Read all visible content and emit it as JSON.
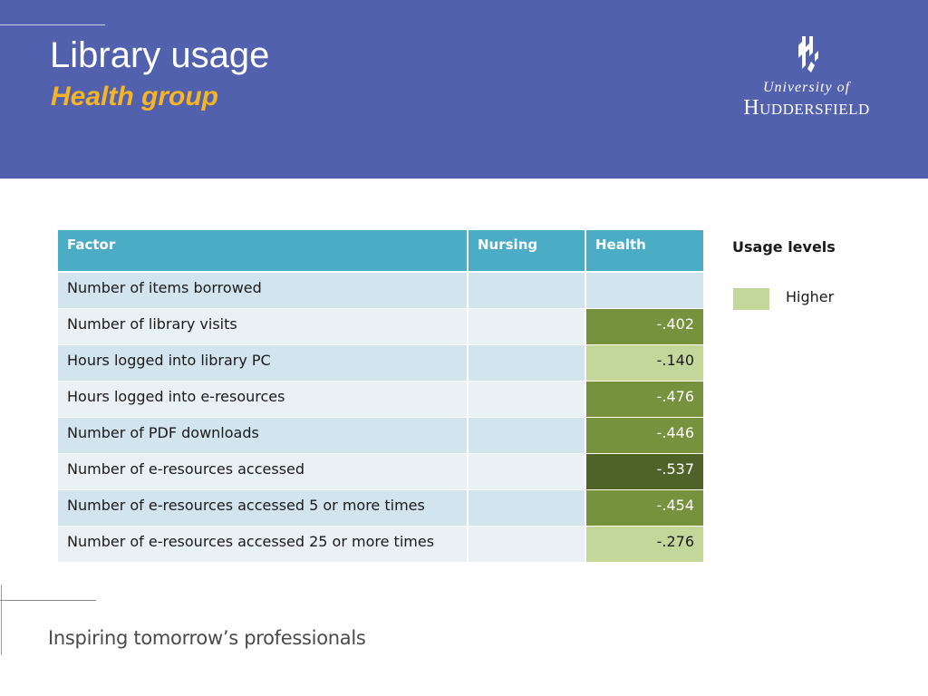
{
  "slide": {
    "title": "Library usage",
    "subtitle": "Health group",
    "logo": {
      "icon": "university-crest-icon",
      "line1": "University of",
      "line2": "Huddersfield"
    },
    "footer": {
      "tagline": "Inspiring tomorrow’s professionals"
    }
  },
  "colors": {
    "header_bg": "#5161ae",
    "subtitle": "#f7b524",
    "table_header": "#4bacc6",
    "row_odd": "#d2e4ed",
    "row_even": "#e9f1f5",
    "level_light": "#c4d79b",
    "level_medium": "#76923c",
    "level_dark": "#4f6228"
  },
  "table": {
    "headers": [
      "Factor",
      "Nursing",
      "Health"
    ],
    "rows": [
      {
        "factor": "Number of items borrowed",
        "nursing": "",
        "health": "",
        "level": "none"
      },
      {
        "factor": "Number of library visits",
        "nursing": "",
        "health": "-.402",
        "level": "medium"
      },
      {
        "factor": "Hours logged into library PC",
        "nursing": "",
        "health": "-.140",
        "level": "light"
      },
      {
        "factor": "Hours logged into e-resources",
        "nursing": "",
        "health": "-.476",
        "level": "medium"
      },
      {
        "factor": "Number of PDF downloads",
        "nursing": "",
        "health": "-.446",
        "level": "medium"
      },
      {
        "factor": "Number of e-resources accessed",
        "nursing": "",
        "health": "-.537",
        "level": "dark"
      },
      {
        "factor": "Number of e-resources accessed 5 or more times",
        "nursing": "",
        "health": "-.454",
        "level": "medium"
      },
      {
        "factor": "Number of e-resources accessed 25 or more times",
        "nursing": "",
        "health": "-.276",
        "level": "light"
      }
    ]
  },
  "legend": {
    "title": "Usage levels",
    "items": [
      {
        "label": "Higher",
        "color": "#c4d79b"
      }
    ]
  }
}
